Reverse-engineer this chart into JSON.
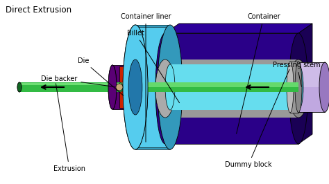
{
  "title": "Direct Extrusion",
  "bg_color": "#ffffff",
  "labels": {
    "container_liner": "Container liner",
    "container": "Container",
    "billet": "Billet",
    "die": "Die",
    "die_backer": "Die backer",
    "pressing_stem": "Pressing stem",
    "dummy_block": "Dummy block",
    "extrusion": "Extrusion"
  },
  "colors": {
    "container_outer": "#1a0066",
    "container_face": "#2a0088",
    "container_liner": "#55ccee",
    "container_liner_dark": "#3399bb",
    "billet": "#66ddee",
    "billet_dark": "#44aabb",
    "die_backer": "#5a0075",
    "die_backer_dark": "#3a0055",
    "die_red": "#cc2200",
    "die_tan": "#c8a878",
    "stem_body": "#c0a8e0",
    "stem_light": "#ddd0f0",
    "stem_dark": "#9878c0",
    "gray_inner": "#999999",
    "gray_dark": "#666666",
    "green_rod": "#33bb44",
    "green_rod_light": "#88ee88",
    "green_rod_dark": "#116622",
    "green_rod_mid": "#55cc66"
  }
}
